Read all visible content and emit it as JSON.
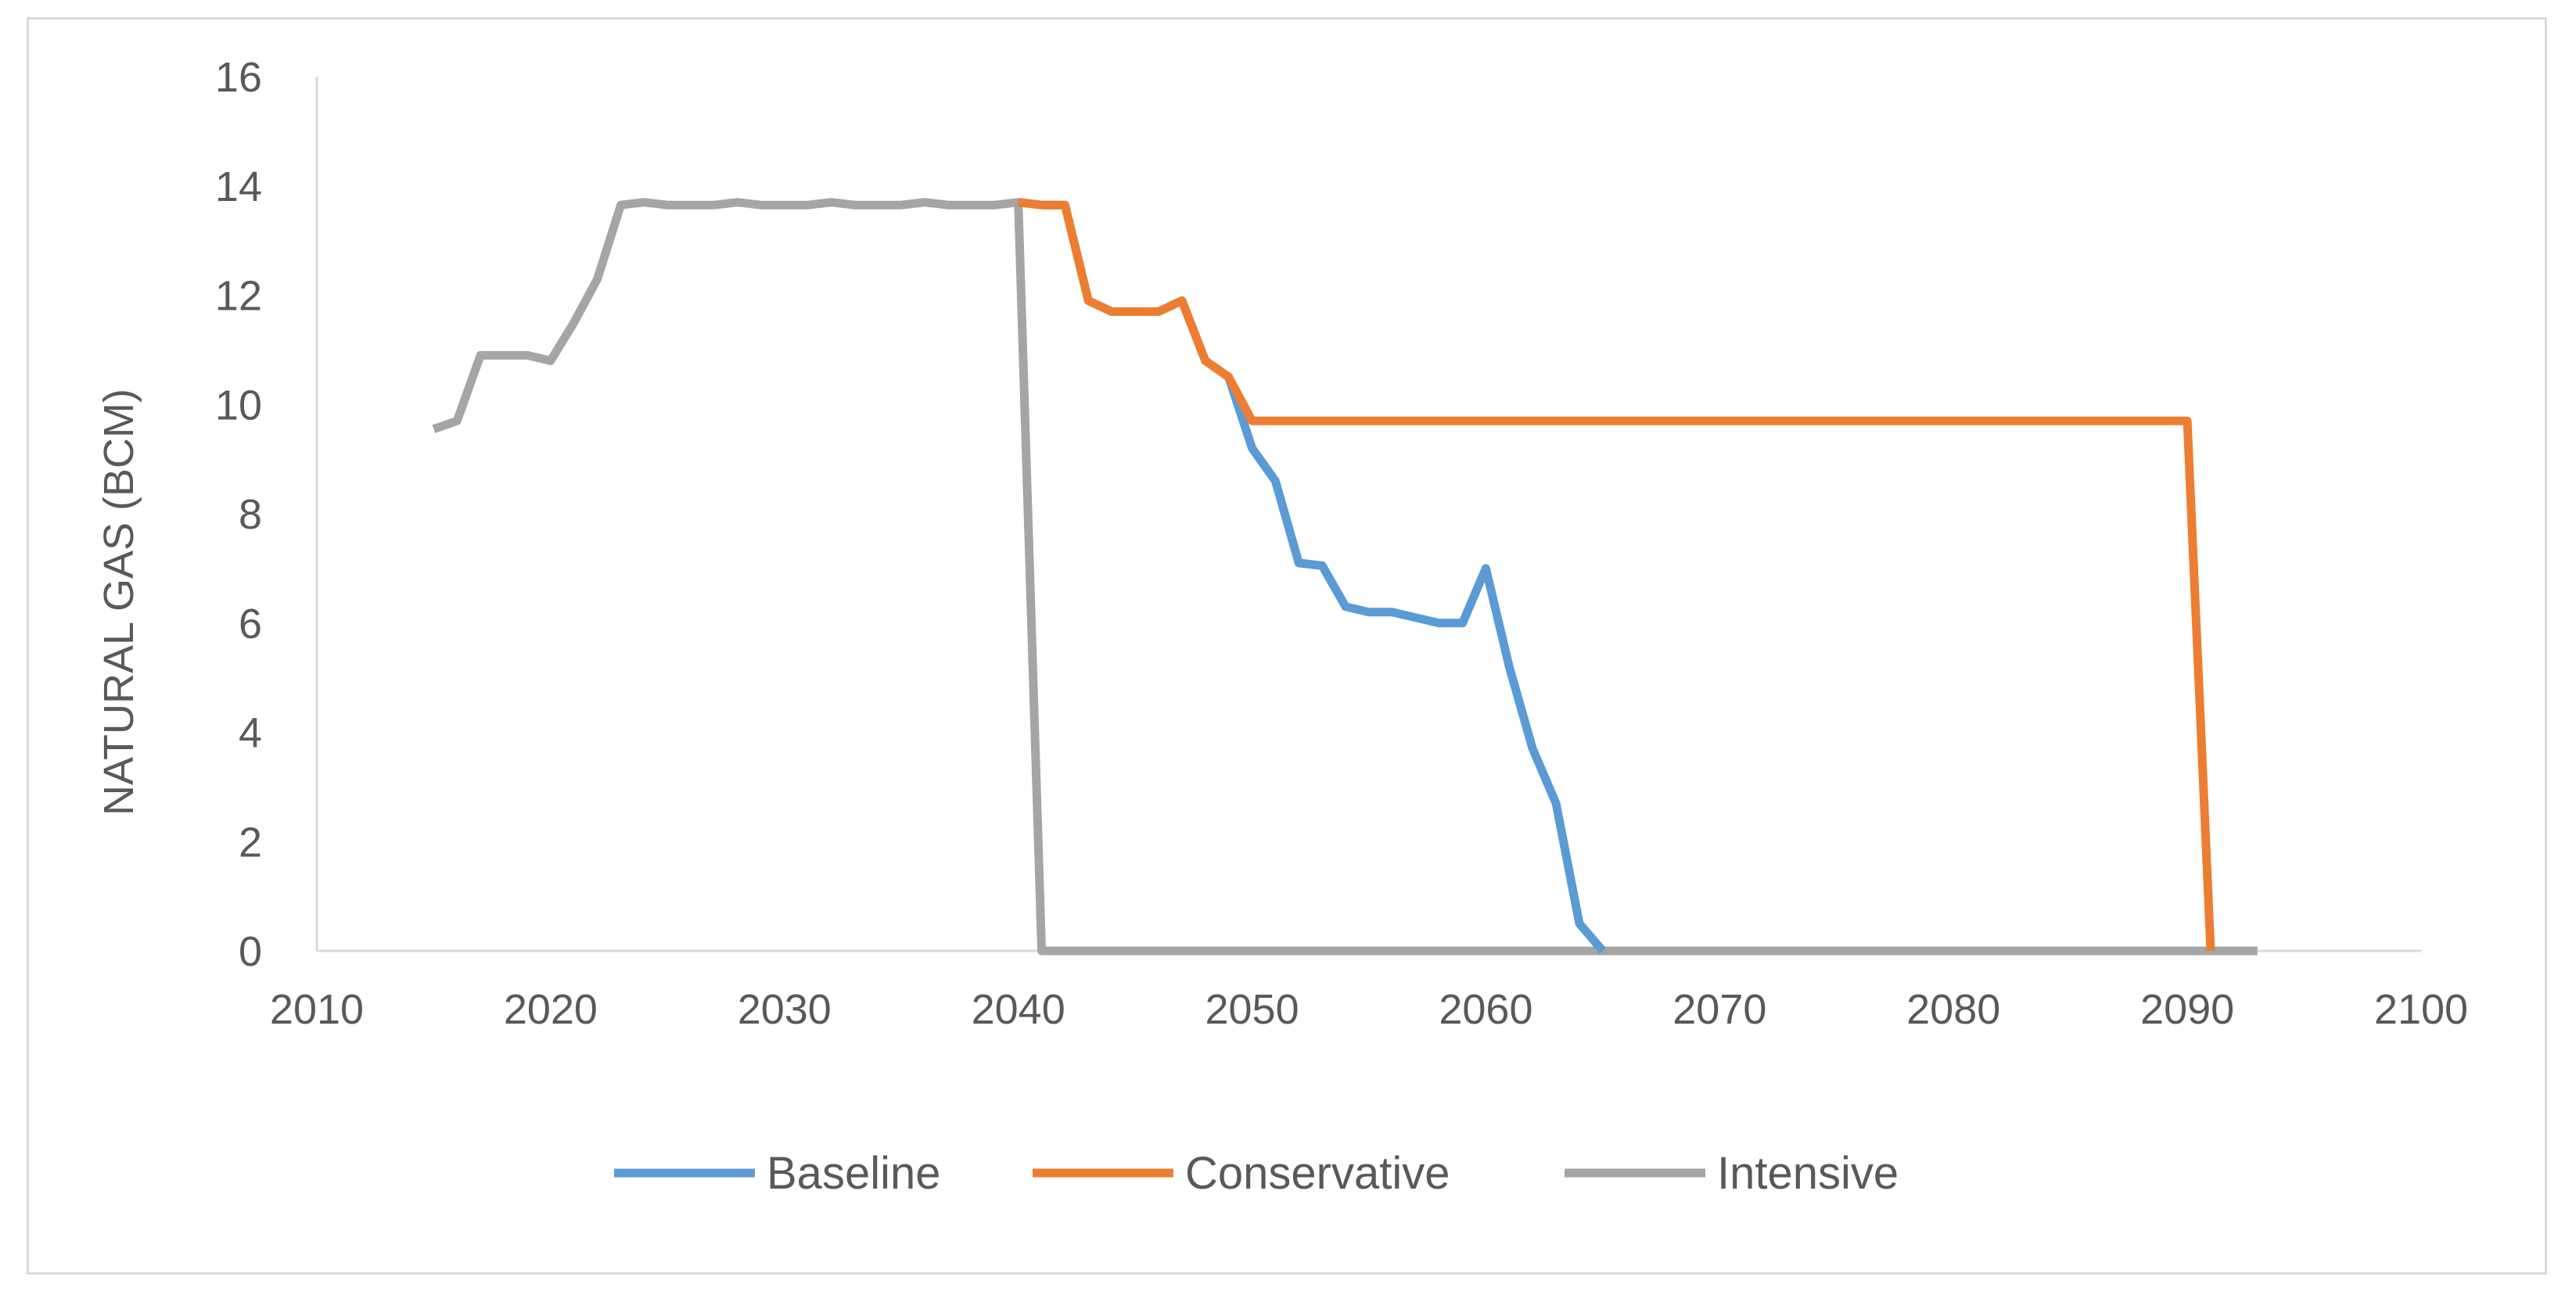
{
  "chart_data": {
    "type": "line",
    "title": "",
    "xlabel": "",
    "ylabel": "NATURAL GAS (BCM)",
    "xlim": [
      2010,
      2100
    ],
    "ylim": [
      0,
      16
    ],
    "x_ticks": [
      2010,
      2020,
      2030,
      2040,
      2050,
      2060,
      2070,
      2080,
      2090,
      2100
    ],
    "y_ticks": [
      0,
      2,
      4,
      6,
      8,
      10,
      12,
      14,
      16
    ],
    "grid": false,
    "legend": "bottom",
    "series": [
      {
        "name": "Intensive",
        "color": "#a5a5a5",
        "points": [
          [
            2015,
            9.55
          ],
          [
            2016,
            9.7
          ],
          [
            2017,
            10.9
          ],
          [
            2018,
            10.9
          ],
          [
            2019,
            10.9
          ],
          [
            2020,
            10.8
          ],
          [
            2021,
            11.5
          ],
          [
            2022,
            12.3
          ],
          [
            2023,
            13.65
          ],
          [
            2024,
            13.7
          ],
          [
            2025,
            13.65
          ],
          [
            2026,
            13.65
          ],
          [
            2027,
            13.65
          ],
          [
            2028,
            13.7
          ],
          [
            2029,
            13.65
          ],
          [
            2030,
            13.65
          ],
          [
            2031,
            13.65
          ],
          [
            2032,
            13.7
          ],
          [
            2033,
            13.65
          ],
          [
            2034,
            13.65
          ],
          [
            2035,
            13.65
          ],
          [
            2036,
            13.7
          ],
          [
            2037,
            13.65
          ],
          [
            2038,
            13.65
          ],
          [
            2039,
            13.65
          ],
          [
            2040,
            13.7
          ],
          [
            2041,
            0
          ],
          [
            2050,
            0
          ],
          [
            2060,
            0
          ],
          [
            2070,
            0
          ],
          [
            2080,
            0
          ],
          [
            2090,
            0
          ],
          [
            2093,
            0
          ]
        ]
      },
      {
        "name": "Baseline",
        "color": "#5b9bd5",
        "points": [
          [
            2040,
            13.7
          ],
          [
            2041,
            13.65
          ],
          [
            2042,
            13.65
          ],
          [
            2043,
            11.9
          ],
          [
            2044,
            11.7
          ],
          [
            2045,
            11.7
          ],
          [
            2046,
            11.7
          ],
          [
            2047,
            11.9
          ],
          [
            2048,
            10.8
          ],
          [
            2049,
            10.5
          ],
          [
            2050,
            9.2
          ],
          [
            2051,
            8.6
          ],
          [
            2052,
            7.1
          ],
          [
            2053,
            7.05
          ],
          [
            2054,
            6.3
          ],
          [
            2055,
            6.2
          ],
          [
            2056,
            6.2
          ],
          [
            2057,
            6.1
          ],
          [
            2058,
            6.0
          ],
          [
            2059,
            6.0
          ],
          [
            2060,
            7.0
          ],
          [
            2061,
            5.2
          ],
          [
            2062,
            3.7
          ],
          [
            2063,
            2.7
          ],
          [
            2064,
            0.5
          ],
          [
            2065,
            0
          ]
        ]
      },
      {
        "name": "Conservative",
        "color": "#ed7d31",
        "points": [
          [
            2040,
            13.7
          ],
          [
            2041,
            13.65
          ],
          [
            2042,
            13.65
          ],
          [
            2043,
            11.9
          ],
          [
            2044,
            11.7
          ],
          [
            2045,
            11.7
          ],
          [
            2046,
            11.7
          ],
          [
            2047,
            11.9
          ],
          [
            2048,
            10.8
          ],
          [
            2049,
            10.5
          ],
          [
            2050,
            9.7
          ],
          [
            2060,
            9.7
          ],
          [
            2070,
            9.7
          ],
          [
            2080,
            9.7
          ],
          [
            2090,
            9.7
          ],
          [
            2091,
            0
          ]
        ]
      }
    ],
    "legend_order": [
      "Baseline",
      "Conservative",
      "Intensive"
    ]
  }
}
